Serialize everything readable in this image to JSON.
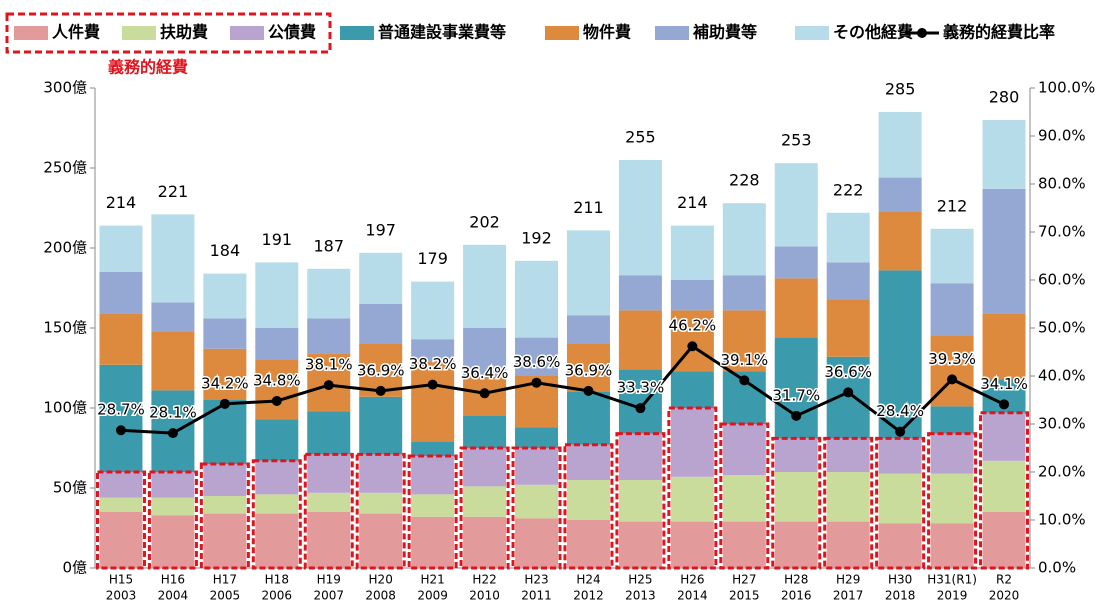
{
  "chart_data": {
    "type": "bar",
    "stacked": true,
    "categories": [
      [
        "H15",
        "2003"
      ],
      [
        "H16",
        "2004"
      ],
      [
        "H17",
        "2005"
      ],
      [
        "H18",
        "2006"
      ],
      [
        "H19",
        "2007"
      ],
      [
        "H20",
        "2008"
      ],
      [
        "H21",
        "2009"
      ],
      [
        "H22",
        "2010"
      ],
      [
        "H23",
        "2011"
      ],
      [
        "H24",
        "2012"
      ],
      [
        "H25",
        "2013"
      ],
      [
        "H26",
        "2014"
      ],
      [
        "H27",
        "2015"
      ],
      [
        "H28",
        "2016"
      ],
      [
        "H29",
        "2017"
      ],
      [
        "H30",
        "2018"
      ],
      [
        "H31(R1)",
        "2019"
      ],
      [
        "R2",
        "2020"
      ]
    ],
    "series": [
      {
        "name": "人件費",
        "color": "#e39a9a",
        "values": [
          35,
          33,
          34,
          34,
          35,
          34,
          32,
          32,
          31,
          30,
          29,
          29,
          29,
          29,
          29,
          28,
          28,
          35
        ]
      },
      {
        "name": "扶助費",
        "color": "#c9dc9c",
        "values": [
          9,
          11,
          11,
          12,
          12,
          13,
          14,
          19,
          21,
          25,
          26,
          28,
          29,
          31,
          31,
          31,
          31,
          32
        ]
      },
      {
        "name": "公債費",
        "color": "#b8a4cf",
        "values": [
          16,
          16,
          20,
          21,
          24,
          24,
          24,
          24,
          23,
          22,
          29,
          43,
          32,
          21,
          21,
          22,
          25,
          30
        ]
      },
      {
        "name": "普通建設事業費等",
        "color": "#3b9aac",
        "values": [
          67,
          51,
          40,
          26,
          27,
          36,
          9,
          20,
          13,
          33,
          40,
          23,
          33,
          63,
          51,
          105,
          17,
          21
        ]
      },
      {
        "name": "物件費",
        "color": "#dd8a3e",
        "values": [
          32,
          37,
          32,
          37,
          36,
          33,
          50,
          25,
          32,
          30,
          37,
          38,
          38,
          37,
          36,
          37,
          44,
          41
        ]
      },
      {
        "name": "補助費等",
        "color": "#95a8d4",
        "values": [
          26,
          18,
          19,
          20,
          22,
          25,
          14,
          30,
          24,
          18,
          22,
          19,
          22,
          20,
          23,
          21,
          33,
          78
        ]
      },
      {
        "name": "その他経費",
        "color": "#b5dce8",
        "values": [
          29,
          55,
          28,
          41,
          31,
          32,
          36,
          52,
          48,
          53,
          72,
          34,
          45,
          52,
          31,
          41,
          34,
          43
        ]
      },
      {
        "name": "義務的経費比率",
        "type": "line",
        "axis": "y2",
        "color": "#000000",
        "values": [
          28.7,
          28.1,
          34.2,
          34.8,
          38.1,
          36.9,
          38.2,
          36.4,
          38.6,
          36.9,
          33.3,
          46.2,
          39.1,
          31.7,
          36.6,
          28.4,
          39.3,
          34.1
        ],
        "value_labels": [
          "28.7%",
          "28.1%",
          "34.2%",
          "34.8%",
          "38.1%",
          "36.9%",
          "38.2%",
          "36.4%",
          "38.6%",
          "36.9%",
          "33.3%",
          "46.2%",
          "39.1%",
          "31.7%",
          "36.6%",
          "28.4%",
          "39.3%",
          "34.1%"
        ]
      }
    ],
    "totals": [
      214,
      221,
      184,
      191,
      187,
      197,
      179,
      202,
      192,
      211,
      255,
      214,
      228,
      253,
      222,
      285,
      212,
      280
    ],
    "annotation": {
      "text": "義務的経費",
      "series": [
        0,
        1,
        2
      ]
    },
    "ylim": [
      0,
      300
    ],
    "yticks": [
      {
        "value": 0,
        "label": "0億"
      },
      {
        "value": 50,
        "label": "50億"
      },
      {
        "value": 100,
        "label": "100億"
      },
      {
        "value": 150,
        "label": "150億"
      },
      {
        "value": 200,
        "label": "200億"
      },
      {
        "value": 250,
        "label": "250億"
      },
      {
        "value": 300,
        "label": "300億"
      }
    ],
    "y2lim": [
      0,
      100
    ],
    "y2ticks": [
      {
        "value": 0,
        "label": "0.0%"
      },
      {
        "value": 10,
        "label": "10.0%"
      },
      {
        "value": 20,
        "label": "20.0%"
      },
      {
        "value": 30,
        "label": "30.0%"
      },
      {
        "value": 40,
        "label": "40.0%"
      },
      {
        "value": 50,
        "label": "50.0%"
      },
      {
        "value": 60,
        "label": "60.0%"
      },
      {
        "value": 70,
        "label": "70.0%"
      },
      {
        "value": 80,
        "label": "80.0%"
      },
      {
        "value": 90,
        "label": "90.0%"
      },
      {
        "value": 100,
        "label": "100.0%"
      }
    ],
    "grid": false,
    "legend": "top"
  }
}
